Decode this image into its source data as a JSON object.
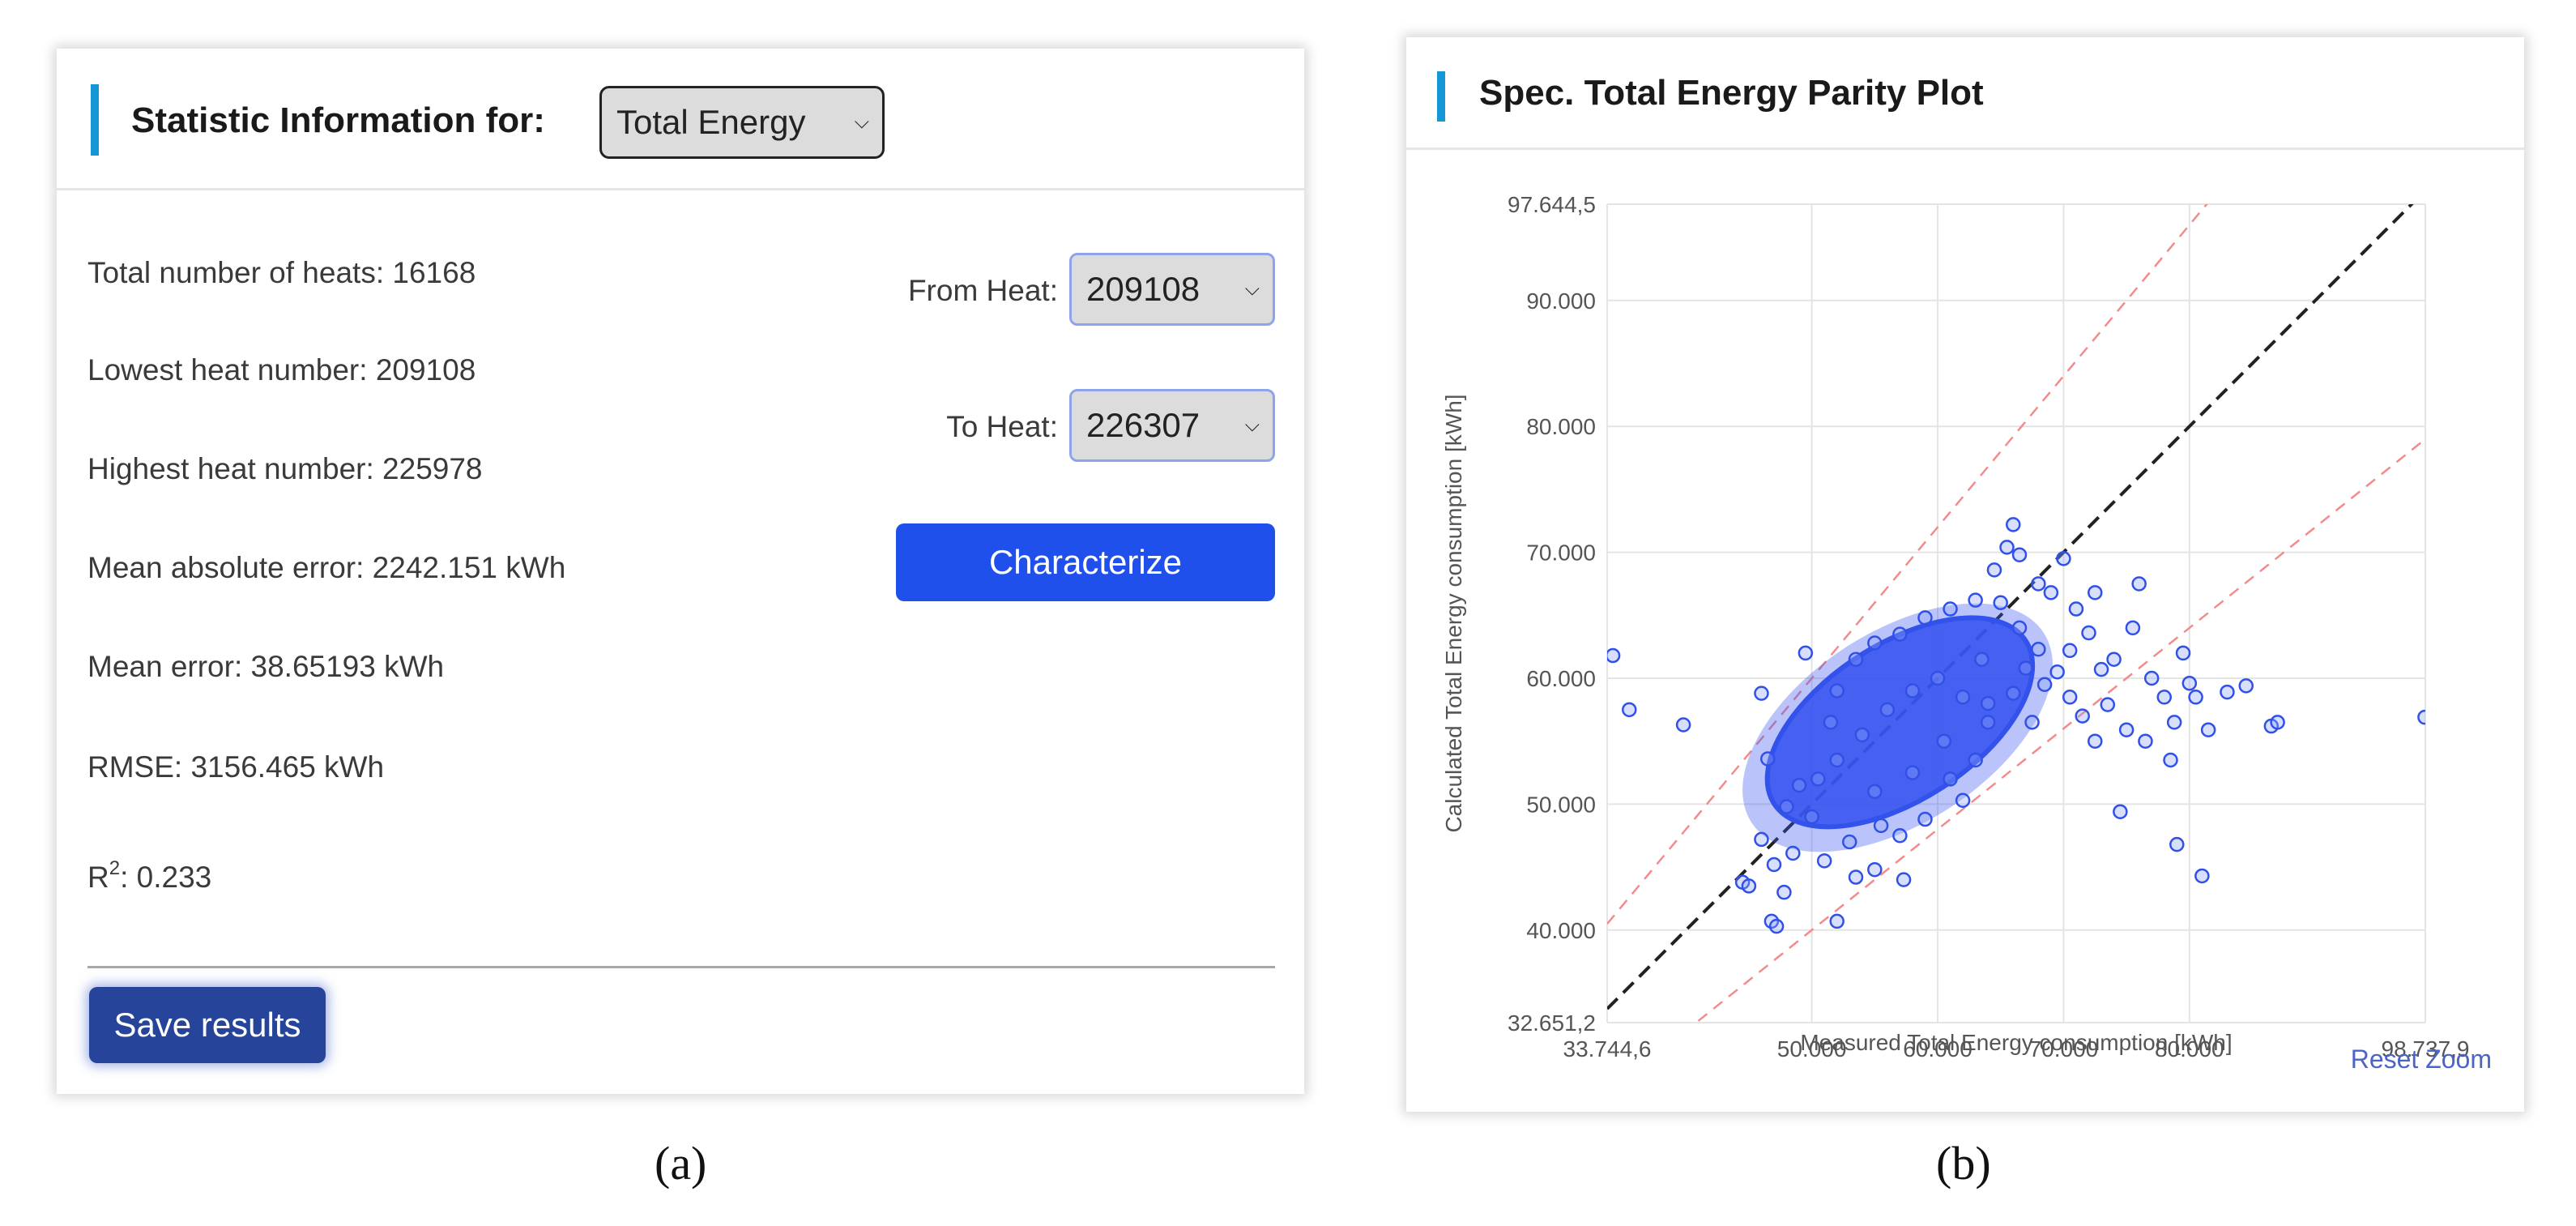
{
  "panel_a": {
    "header_title": "Statistic Information for:",
    "metric_select": "Total Energy",
    "stats": {
      "total_heats": "Total number of heats: 16168",
      "lowest_heat": "Lowest heat number: 209108",
      "highest_heat": "Highest heat number: 225978",
      "mae": "Mean absolute error: 2242.151 kWh",
      "mean_error": "Mean error: 38.65193 kWh",
      "rmse": "RMSE: 3156.465 kWh",
      "r2_prefix": "R",
      "r2_sup": "2",
      "r2_value": ": 0.233"
    },
    "from_heat_label": "From Heat:",
    "from_heat_value": "209108",
    "to_heat_label": "To Heat:",
    "to_heat_value": "226307",
    "characterize_label": "Characterize",
    "save_label": "Save results",
    "caption": "(a)"
  },
  "panel_b": {
    "header_title": "Spec. Total Energy Parity Plot",
    "reset_zoom": "Reset Zoom",
    "caption": "(b)"
  },
  "colors": {
    "accent": "#1596d6",
    "button_primary": "#2050ec",
    "button_save": "#26459a",
    "point_stroke": "#3050e8",
    "parity_line": "#222222",
    "bound_line": "#f28b8b"
  },
  "icons": {
    "select_chevron": "chevron-down-icon"
  },
  "chart_data": {
    "type": "scatter",
    "xlabel": "Measured Total Energy consumption [kWh]",
    "ylabel": "Calculated Total Energy consumption [kWh]",
    "xlim": [
      33744.6,
      98737.9
    ],
    "ylim": [
      32651.2,
      97644.5
    ],
    "x_ticks": [
      {
        "value": 33744.6,
        "label": "33.744,6"
      },
      {
        "value": 50000,
        "label": "50.000"
      },
      {
        "value": 60000,
        "label": "60.000"
      },
      {
        "value": 70000,
        "label": "70.000"
      },
      {
        "value": 80000,
        "label": "80.000"
      },
      {
        "value": 98737.9,
        "label": "98.737,9"
      }
    ],
    "y_ticks": [
      {
        "value": 32651.2,
        "label": "32.651,2"
      },
      {
        "value": 40000,
        "label": "40.000"
      },
      {
        "value": 50000,
        "label": "50.000"
      },
      {
        "value": 60000,
        "label": "60.000"
      },
      {
        "value": 70000,
        "label": "70.000"
      },
      {
        "value": 80000,
        "label": "80.000"
      },
      {
        "value": 90000,
        "label": "90.000"
      },
      {
        "value": 97644.5,
        "label": "97.644,5"
      }
    ],
    "grid": true,
    "legend": "none",
    "reference_lines": [
      {
        "kind": "parity",
        "slope": 1,
        "offset": 0,
        "style": "dashed"
      },
      {
        "kind": "upper_bound",
        "slope": 1.2,
        "offset": 0,
        "style": "dashed"
      },
      {
        "kind": "lower_bound",
        "slope": 0.8,
        "offset": 0,
        "style": "dashed"
      }
    ],
    "cluster": {
      "center": [
        57000,
        56500
      ],
      "approx_count": 16168
    },
    "points": [
      [
        34200,
        61800
      ],
      [
        35500,
        57500
      ],
      [
        39800,
        56300
      ],
      [
        44500,
        43800
      ],
      [
        45000,
        43500
      ],
      [
        46000,
        58800
      ],
      [
        46500,
        53600
      ],
      [
        46000,
        47200
      ],
      [
        47000,
        45200
      ],
      [
        46800,
        40700
      ],
      [
        47200,
        40300
      ],
      [
        47800,
        43000
      ],
      [
        48500,
        46100
      ],
      [
        49500,
        62000
      ],
      [
        52000,
        40700
      ],
      [
        53500,
        44200
      ],
      [
        55000,
        44800
      ],
      [
        57300,
        44000
      ],
      [
        62000,
        50300
      ],
      [
        64500,
        68600
      ],
      [
        65500,
        70400
      ],
      [
        66000,
        72200
      ],
      [
        66500,
        69800
      ],
      [
        68000,
        67500
      ],
      [
        69000,
        66800
      ],
      [
        70000,
        69500
      ],
      [
        71000,
        65500
      ],
      [
        72500,
        66800
      ],
      [
        73000,
        60700
      ],
      [
        73500,
        57900
      ],
      [
        74000,
        61500
      ],
      [
        74500,
        49400
      ],
      [
        75000,
        55900
      ],
      [
        76000,
        67500
      ],
      [
        76500,
        55000
      ],
      [
        77000,
        60000
      ],
      [
        78000,
        58500
      ],
      [
        78500,
        53500
      ],
      [
        78800,
        56500
      ],
      [
        79000,
        46800
      ],
      [
        79500,
        62000
      ],
      [
        80000,
        59600
      ],
      [
        80500,
        58500
      ],
      [
        81000,
        44300
      ],
      [
        81500,
        55900
      ],
      [
        83000,
        58900
      ],
      [
        84500,
        59400
      ],
      [
        86500,
        56200
      ],
      [
        87000,
        56500
      ],
      [
        98700,
        56900
      ],
      [
        75500,
        64000
      ],
      [
        72000,
        63600
      ],
      [
        70500,
        62200
      ],
      [
        68500,
        59500
      ],
      [
        67000,
        60800
      ],
      [
        64000,
        56500
      ],
      [
        63000,
        53500
      ],
      [
        61000,
        52000
      ],
      [
        59000,
        48800
      ],
      [
        57000,
        47500
      ],
      [
        55500,
        48300
      ],
      [
        53000,
        47000
      ],
      [
        51000,
        45500
      ],
      [
        50000,
        49000
      ],
      [
        49000,
        51500
      ],
      [
        48000,
        49800
      ],
      [
        52000,
        59000
      ],
      [
        53500,
        61500
      ],
      [
        55000,
        62800
      ],
      [
        57000,
        63500
      ],
      [
        59000,
        64800
      ],
      [
        61000,
        65500
      ],
      [
        63000,
        66200
      ],
      [
        65000,
        66000
      ],
      [
        66500,
        64000
      ],
      [
        68000,
        62300
      ],
      [
        69500,
        60500
      ],
      [
        70500,
        58500
      ],
      [
        71500,
        57000
      ],
      [
        72500,
        55000
      ],
      [
        60000,
        60000
      ],
      [
        58000,
        59000
      ],
      [
        56000,
        57500
      ],
      [
        54000,
        55500
      ],
      [
        52000,
        53500
      ],
      [
        62000,
        58500
      ],
      [
        64000,
        58000
      ],
      [
        66000,
        58800
      ],
      [
        55000,
        51000
      ],
      [
        58000,
        52500
      ],
      [
        50500,
        52000
      ],
      [
        51500,
        56500
      ],
      [
        60500,
        55000
      ],
      [
        63500,
        61500
      ],
      [
        67500,
        56500
      ]
    ]
  }
}
